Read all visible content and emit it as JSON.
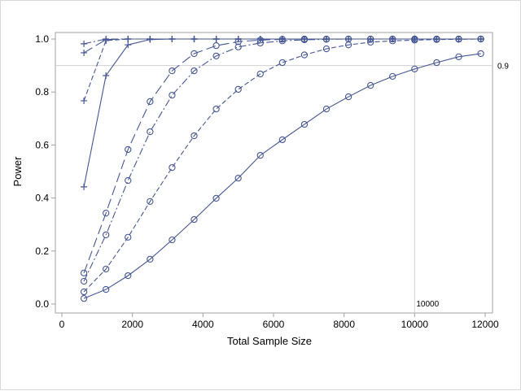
{
  "chart_data": {
    "type": "line",
    "title": "",
    "xlabel": "Total Sample Size",
    "ylabel": "Power",
    "xlim": [
      0,
      12000
    ],
    "ylim": [
      0,
      1.0
    ],
    "xticks": [
      "0",
      "2000",
      "4000",
      "6000",
      "8000",
      "10000",
      "12000"
    ],
    "yticks": [
      "0.0",
      "0.2",
      "0.4",
      "0.6",
      "0.8",
      "1.0"
    ],
    "grid": false,
    "legend": "none",
    "color": "#445694",
    "reference_lines": [
      {
        "axis": "y",
        "value": 0.9,
        "label": "0.9"
      },
      {
        "axis": "x",
        "value": 10000,
        "label": "10000"
      }
    ],
    "x": [
      625,
      1250,
      1875,
      2500,
      3125,
      3750,
      4375,
      5000,
      5625,
      6250,
      6875,
      7500,
      8125,
      8750,
      9375,
      10000,
      10625,
      11250,
      11875
    ],
    "series": [
      {
        "marker": "plus",
        "dash": "solid",
        "values": [
          0.442,
          0.862,
          0.978,
          0.998,
          1,
          1,
          1,
          1,
          1,
          1,
          1,
          1,
          1,
          1,
          1,
          1,
          1,
          1,
          1
        ]
      },
      {
        "marker": "plus",
        "dash": "dash",
        "values": [
          0.767,
          0.994,
          1,
          1,
          1,
          1,
          1,
          1,
          1,
          1,
          1,
          1,
          1,
          1,
          1,
          1,
          1,
          1,
          1
        ]
      },
      {
        "marker": "plus",
        "dash": "longdash",
        "values": [
          0.948,
          0.998,
          1,
          1,
          1,
          1,
          1,
          1,
          1,
          1,
          1,
          1,
          1,
          1,
          1,
          1,
          1,
          1,
          1
        ]
      },
      {
        "marker": "plus",
        "dash": "dashdot",
        "values": [
          0.982,
          1,
          1,
          1,
          1,
          1,
          1,
          1,
          1,
          1,
          1,
          1,
          1,
          1,
          1,
          1,
          1,
          1,
          1
        ]
      },
      {
        "marker": "circle",
        "dash": "longdash",
        "values": [
          0.117,
          0.343,
          0.583,
          0.764,
          0.88,
          0.945,
          0.975,
          0.99,
          0.996,
          0.999,
          1,
          1,
          1,
          1,
          1,
          1,
          1,
          1,
          1
        ]
      },
      {
        "marker": "circle",
        "dash": "dashdot",
        "values": [
          0.086,
          0.261,
          0.466,
          0.65,
          0.788,
          0.88,
          0.936,
          0.97,
          0.985,
          0.993,
          0.997,
          0.999,
          1,
          1,
          1,
          1,
          1,
          1,
          1
        ]
      },
      {
        "marker": "circle",
        "dash": "dash",
        "values": [
          0.046,
          0.132,
          0.252,
          0.387,
          0.515,
          0.635,
          0.736,
          0.81,
          0.868,
          0.911,
          0.94,
          0.963,
          0.978,
          0.988,
          0.993,
          0.996,
          0.998,
          0.999,
          1
        ]
      },
      {
        "marker": "circle",
        "dash": "solid",
        "values": [
          0.021,
          0.055,
          0.107,
          0.169,
          0.242,
          0.319,
          0.399,
          0.475,
          0.561,
          0.62,
          0.678,
          0.736,
          0.782,
          0.825,
          0.859,
          0.887,
          0.911,
          0.933,
          0.945
        ]
      }
    ]
  }
}
